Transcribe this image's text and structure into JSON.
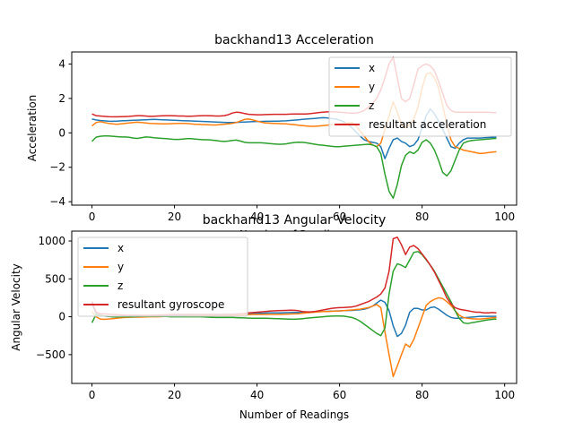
{
  "chart_data": [
    {
      "type": "line",
      "title": "backhand13 Acceleration",
      "xlabel": "Number of Readings",
      "ylabel": "Acceleration",
      "xlim": [
        -4.9,
        102.9
      ],
      "ylim": [
        -4.2,
        4.7
      ],
      "xticks": [
        0,
        20,
        40,
        60,
        80,
        100
      ],
      "yticks": [
        -4,
        -2,
        0,
        2,
        4
      ],
      "legend": "top-right",
      "grid": false,
      "x": [
        0,
        1,
        2,
        3,
        4,
        5,
        6,
        7,
        8,
        9,
        10,
        11,
        12,
        13,
        14,
        15,
        16,
        17,
        18,
        19,
        20,
        21,
        22,
        23,
        24,
        25,
        26,
        27,
        28,
        29,
        30,
        31,
        32,
        33,
        34,
        35,
        36,
        37,
        38,
        39,
        40,
        41,
        42,
        43,
        44,
        45,
        46,
        47,
        48,
        49,
        50,
        51,
        52,
        53,
        54,
        55,
        56,
        57,
        58,
        59,
        60,
        61,
        62,
        63,
        64,
        65,
        66,
        67,
        68,
        69,
        70,
        71,
        72,
        73,
        74,
        75,
        76,
        77,
        78,
        79,
        80,
        81,
        82,
        83,
        84,
        85,
        86,
        87,
        88,
        89,
        90,
        91,
        92,
        93,
        94,
        95,
        96,
        97,
        98
      ],
      "series": [
        {
          "name": "x",
          "color": "#1f77b4",
          "values": [
            0.8,
            0.75,
            0.72,
            0.7,
            0.68,
            0.67,
            0.68,
            0.7,
            0.71,
            0.72,
            0.73,
            0.74,
            0.75,
            0.76,
            0.77,
            0.78,
            0.77,
            0.76,
            0.75,
            0.74,
            0.73,
            0.72,
            0.71,
            0.7,
            0.69,
            0.68,
            0.67,
            0.66,
            0.65,
            0.64,
            0.63,
            0.62,
            0.61,
            0.6,
            0.6,
            0.61,
            0.62,
            0.63,
            0.64,
            0.65,
            0.66,
            0.66,
            0.67,
            0.67,
            0.68,
            0.68,
            0.69,
            0.7,
            0.72,
            0.74,
            0.76,
            0.78,
            0.8,
            0.82,
            0.84,
            0.86,
            0.88,
            0.87,
            0.84,
            0.8,
            0.74,
            0.65,
            0.5,
            0.3,
            0.05,
            -0.2,
            -0.4,
            -0.5,
            -0.55,
            -0.6,
            -0.8,
            -1.5,
            -0.9,
            -0.4,
            -0.3,
            -0.5,
            -0.6,
            -0.8,
            -0.7,
            -0.4,
            0.3,
            1.0,
            1.4,
            1.1,
            0.7,
            0.2,
            -0.3,
            -0.8,
            -0.9,
            -0.6,
            -0.4,
            -0.3,
            -0.3,
            -0.3,
            -0.3,
            -0.28,
            -0.27,
            -0.26,
            -0.26
          ]
        },
        {
          "name": "y",
          "color": "#ff7f0e",
          "values": [
            0.4,
            0.6,
            0.65,
            0.6,
            0.55,
            0.52,
            0.5,
            0.52,
            0.55,
            0.58,
            0.6,
            0.62,
            0.6,
            0.58,
            0.55,
            0.54,
            0.53,
            0.52,
            0.52,
            0.53,
            0.54,
            0.55,
            0.55,
            0.54,
            0.52,
            0.5,
            0.49,
            0.48,
            0.47,
            0.46,
            0.46,
            0.48,
            0.5,
            0.52,
            0.55,
            0.6,
            0.7,
            0.78,
            0.8,
            0.75,
            0.68,
            0.62,
            0.58,
            0.56,
            0.55,
            0.54,
            0.53,
            0.52,
            0.5,
            0.48,
            0.45,
            0.42,
            0.4,
            0.38,
            0.38,
            0.4,
            0.42,
            0.45,
            0.48,
            0.5,
            0.52,
            0.55,
            0.58,
            0.6,
            0.4,
            0.1,
            -0.2,
            -0.5,
            -0.7,
            -0.8,
            -0.6,
            0.2,
            1.0,
            1.8,
            1.2,
            0.5,
            0.3,
            0.5,
            0.8,
            1.5,
            2.6,
            3.4,
            3.5,
            3.2,
            2.6,
            1.6,
            0.5,
            -0.4,
            -0.8,
            -0.9,
            -1.0,
            -1.05,
            -1.1,
            -1.15,
            -1.2,
            -1.18,
            -1.15,
            -1.12,
            -1.1
          ]
        },
        {
          "name": "z",
          "color": "#2ca02c",
          "values": [
            -0.5,
            -0.25,
            -0.2,
            -0.18,
            -0.18,
            -0.2,
            -0.22,
            -0.24,
            -0.24,
            -0.26,
            -0.3,
            -0.32,
            -0.28,
            -0.24,
            -0.25,
            -0.28,
            -0.3,
            -0.32,
            -0.34,
            -0.36,
            -0.38,
            -0.38,
            -0.36,
            -0.34,
            -0.34,
            -0.36,
            -0.38,
            -0.4,
            -0.4,
            -0.42,
            -0.45,
            -0.48,
            -0.5,
            -0.48,
            -0.44,
            -0.42,
            -0.48,
            -0.55,
            -0.58,
            -0.58,
            -0.58,
            -0.58,
            -0.6,
            -0.62,
            -0.64,
            -0.66,
            -0.66,
            -0.64,
            -0.6,
            -0.56,
            -0.54,
            -0.55,
            -0.58,
            -0.62,
            -0.66,
            -0.7,
            -0.72,
            -0.75,
            -0.78,
            -0.8,
            -0.8,
            -0.78,
            -0.76,
            -0.74,
            -0.72,
            -0.7,
            -0.68,
            -0.66,
            -0.7,
            -0.8,
            -1.2,
            -2.4,
            -3.4,
            -3.8,
            -3.0,
            -1.9,
            -1.3,
            -1.1,
            -1.2,
            -1.0,
            -0.55,
            -0.4,
            -0.6,
            -1.0,
            -1.6,
            -2.3,
            -2.5,
            -2.2,
            -1.6,
            -1.0,
            -0.6,
            -0.5,
            -0.45,
            -0.42,
            -0.4,
            -0.38,
            -0.36,
            -0.34,
            -0.32
          ]
        },
        {
          "name": "resultant acceleration",
          "color": "#d62728",
          "values": [
            1.1,
            1.0,
            0.98,
            0.96,
            0.94,
            0.93,
            0.93,
            0.94,
            0.95,
            0.96,
            0.98,
            1.0,
            1.0,
            0.98,
            0.96,
            0.97,
            0.98,
            0.99,
            1.0,
            1.0,
            0.99,
            0.98,
            0.98,
            0.97,
            0.97,
            0.98,
            0.99,
            1.0,
            1.0,
            0.99,
            0.98,
            0.98,
            1.0,
            1.05,
            1.15,
            1.2,
            1.18,
            1.12,
            1.08,
            1.06,
            1.05,
            1.05,
            1.06,
            1.07,
            1.08,
            1.08,
            1.08,
            1.08,
            1.09,
            1.1,
            1.1,
            1.1,
            1.1,
            1.12,
            1.15,
            1.18,
            1.2,
            1.22,
            1.23,
            1.22,
            1.2,
            1.18,
            1.16,
            1.15,
            1.15,
            1.2,
            1.3,
            1.5,
            1.7,
            2.0,
            2.5,
            3.2,
            4.0,
            4.4,
            3.2,
            2.0,
            1.8,
            2.0,
            2.8,
            3.7,
            3.9,
            4.0,
            3.9,
            3.6,
            3.0,
            2.3,
            1.6,
            1.3,
            1.2,
            1.2,
            1.2,
            1.2,
            1.2,
            1.2,
            1.2,
            1.2,
            1.2,
            1.18,
            1.17
          ]
        }
      ]
    },
    {
      "type": "line",
      "title": "backhand13 Angular Velocity",
      "xlabel": "Number of Readings",
      "ylabel": "Angular Velocity",
      "xlim": [
        -4.9,
        102.9
      ],
      "ylim": [
        -880,
        1130
      ],
      "xticks": [
        0,
        20,
        40,
        60,
        80,
        100
      ],
      "yticks": [
        -500,
        0,
        500,
        1000
      ],
      "legend": "top-left",
      "grid": false,
      "x": [
        0,
        1,
        2,
        3,
        4,
        5,
        6,
        7,
        8,
        9,
        10,
        11,
        12,
        13,
        14,
        15,
        16,
        17,
        18,
        19,
        20,
        21,
        22,
        23,
        24,
        25,
        26,
        27,
        28,
        29,
        30,
        31,
        32,
        33,
        34,
        35,
        36,
        37,
        38,
        39,
        40,
        41,
        42,
        43,
        44,
        45,
        46,
        47,
        48,
        49,
        50,
        51,
        52,
        53,
        54,
        55,
        56,
        57,
        58,
        59,
        60,
        61,
        62,
        63,
        64,
        65,
        66,
        67,
        68,
        69,
        70,
        71,
        72,
        73,
        74,
        75,
        76,
        77,
        78,
        79,
        80,
        81,
        82,
        83,
        84,
        85,
        86,
        87,
        88,
        89,
        90,
        91,
        92,
        93,
        94,
        95,
        96,
        97,
        98
      ],
      "series": [
        {
          "name": "x",
          "color": "#1f77b4",
          "values": [
            180,
            40,
            20,
            10,
            5,
            0,
            0,
            5,
            10,
            12,
            15,
            15,
            12,
            10,
            10,
            12,
            15,
            18,
            20,
            20,
            18,
            15,
            14,
            14,
            15,
            16,
            18,
            20,
            22,
            24,
            26,
            28,
            30,
            32,
            34,
            36,
            38,
            40,
            42,
            44,
            45,
            46,
            48,
            50,
            50,
            50,
            52,
            54,
            55,
            56,
            58,
            60,
            62,
            64,
            66,
            68,
            70,
            72,
            74,
            76,
            78,
            80,
            82,
            84,
            88,
            92,
            100,
            115,
            140,
            180,
            220,
            190,
            80,
            -120,
            -260,
            -220,
            -110,
            60,
            110,
            110,
            90,
            90,
            120,
            130,
            100,
            60,
            20,
            -10,
            -20,
            -20,
            -15,
            -10,
            -5,
            0,
            5,
            5,
            5,
            5,
            5
          ]
        },
        {
          "name": "y",
          "color": "#ff7f0e",
          "values": [
            70,
            0,
            -30,
            -35,
            -30,
            -25,
            -20,
            -15,
            -10,
            -8,
            -5,
            -5,
            -5,
            -2,
            0,
            0,
            0,
            2,
            5,
            5,
            5,
            5,
            5,
            8,
            10,
            10,
            10,
            12,
            12,
            10,
            10,
            10,
            12,
            15,
            18,
            20,
            22,
            25,
            28,
            30,
            30,
            30,
            30,
            30,
            30,
            30,
            32,
            34,
            36,
            38,
            40,
            45,
            50,
            55,
            60,
            65,
            68,
            70,
            72,
            74,
            76,
            80,
            85,
            90,
            95,
            100,
            110,
            120,
            140,
            160,
            120,
            -200,
            -500,
            -790,
            -650,
            -500,
            -360,
            -400,
            -300,
            -150,
            0,
            150,
            200,
            230,
            250,
            240,
            200,
            150,
            80,
            20,
            -10,
            -20,
            -25,
            -30,
            -30,
            -25,
            -20,
            -15,
            -10
          ]
        },
        {
          "name": "z",
          "color": "#2ca02c",
          "values": [
            -80,
            30,
            15,
            10,
            5,
            0,
            0,
            0,
            0,
            0,
            0,
            2,
            5,
            5,
            5,
            5,
            5,
            5,
            3,
            0,
            0,
            0,
            0,
            0,
            0,
            0,
            0,
            -2,
            -5,
            -8,
            -10,
            -10,
            -10,
            -10,
            -10,
            -12,
            -14,
            -16,
            -18,
            -20,
            -20,
            -20,
            -20,
            -22,
            -24,
            -26,
            -28,
            -30,
            -32,
            -34,
            -30,
            -25,
            -20,
            -15,
            -10,
            -5,
            0,
            5,
            8,
            10,
            10,
            8,
            0,
            -10,
            -30,
            -60,
            -100,
            -140,
            -180,
            -220,
            -250,
            -150,
            300,
            600,
            700,
            680,
            650,
            750,
            850,
            860,
            820,
            750,
            680,
            600,
            500,
            400,
            300,
            200,
            80,
            -20,
            -80,
            -90,
            -80,
            -70,
            -60,
            -50,
            -40,
            -35,
            -30
          ]
        },
        {
          "name": "resultant gyroscope",
          "color": "#d62728",
          "values": [
            200,
            60,
            40,
            38,
            35,
            30,
            28,
            25,
            22,
            20,
            20,
            20,
            18,
            18,
            18,
            20,
            22,
            24,
            26,
            28,
            30,
            30,
            30,
            30,
            30,
            30,
            30,
            30,
            30,
            30,
            30,
            30,
            30,
            30,
            32,
            34,
            38,
            42,
            50,
            55,
            60,
            65,
            70,
            75,
            78,
            80,
            82,
            84,
            86,
            85,
            80,
            70,
            65,
            65,
            70,
            80,
            90,
            100,
            110,
            115,
            120,
            122,
            125,
            130,
            140,
            160,
            180,
            200,
            230,
            260,
            300,
            380,
            600,
            1030,
            1050,
            950,
            820,
            920,
            940,
            900,
            830,
            760,
            680,
            590,
            480,
            370,
            250,
            170,
            120,
            100,
            90,
            80,
            70,
            60,
            60,
            50,
            50,
            55,
            50
          ]
        }
      ]
    }
  ]
}
